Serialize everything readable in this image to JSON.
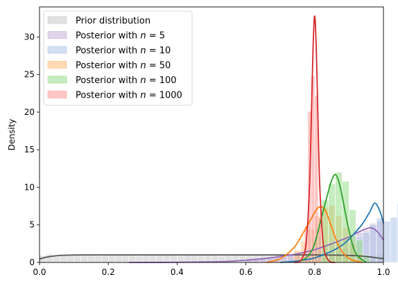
{
  "chart_data": {
    "type": "area",
    "title": "",
    "xlabel": "",
    "ylabel": "Density",
    "xlim": [
      0.0,
      1.0
    ],
    "ylim": [
      0,
      34
    ],
    "xticks": [
      "0.0",
      "0.2",
      "0.4",
      "0.6",
      "0.8",
      "1.0"
    ],
    "yticks": [
      "0",
      "5",
      "10",
      "15",
      "20",
      "25",
      "30"
    ],
    "grid": false,
    "legend_position": "top-left",
    "series": [
      {
        "name": "Prior distribution",
        "label_main": "Prior distribution",
        "label_n": "",
        "color": "#555555",
        "fill": "#c8c8c8",
        "kde_x": [
          0.0,
          0.02,
          0.05,
          0.08,
          0.12,
          0.2,
          0.3,
          0.4,
          0.5,
          0.6,
          0.7,
          0.8,
          0.88,
          0.92,
          0.95,
          0.98,
          1.0
        ],
        "kde_y": [
          0.45,
          0.7,
          0.9,
          0.97,
          1.0,
          1.0,
          1.0,
          1.0,
          1.0,
          1.0,
          1.0,
          1.0,
          0.97,
          0.9,
          0.8,
          0.62,
          0.5
        ],
        "hist_start": 0.0,
        "hist_width": 0.02,
        "hist_values": [
          0.9,
          1.1,
          0.9,
          1.0,
          1.05,
          0.95,
          1.0,
          1.1,
          0.9,
          1.0,
          1.0,
          0.95,
          1.05,
          1.0,
          0.9,
          1.1,
          1.0,
          0.95,
          1.0,
          1.05,
          0.9,
          1.0,
          1.0,
          1.1,
          0.95,
          1.0,
          0.9,
          1.05,
          1.0,
          1.0,
          0.95,
          1.0,
          1.1,
          0.9,
          1.0,
          1.05,
          1.0,
          0.95,
          1.0,
          1.0,
          1.05,
          0.9,
          1.0,
          1.0,
          1.1,
          0.95,
          1.0,
          0.9,
          1.0,
          1.0
        ]
      },
      {
        "name": "Posterior with n = 5",
        "label_main": "Posterior with ",
        "label_n": "5",
        "color": "#9467bd",
        "fill": "#c5b0d5",
        "kde_x": [
          0.26,
          0.4,
          0.5,
          0.55,
          0.6,
          0.65,
          0.7,
          0.75,
          0.8,
          0.85,
          0.9,
          0.93,
          0.96,
          0.98,
          1.0
        ],
        "kde_y": [
          0.0,
          0.02,
          0.08,
          0.15,
          0.3,
          0.5,
          0.8,
          1.15,
          1.7,
          2.5,
          3.4,
          4.1,
          4.6,
          4.2,
          3.0
        ],
        "hist_start": 0.6,
        "hist_width": 0.02,
        "hist_values": [
          0.3,
          0.4,
          0.5,
          0.6,
          0.8,
          0.8,
          1.0,
          1.2,
          1.3,
          1.6,
          1.8,
          2.1,
          2.5,
          2.8,
          3.2,
          3.5,
          4.0,
          4.3,
          5.2,
          5.5
        ]
      },
      {
        "name": "Posterior with n = 10",
        "label_main": "Posterior with ",
        "label_n": "10",
        "color": "#1f77b4",
        "fill": "#aec7e8",
        "kde_x": [
          0.7,
          0.75,
          0.8,
          0.85,
          0.88,
          0.9,
          0.92,
          0.94,
          0.96,
          0.975,
          0.99,
          1.0
        ],
        "kde_y": [
          0.0,
          0.2,
          0.6,
          1.5,
          2.3,
          3.1,
          4.1,
          5.2,
          6.7,
          7.9,
          6.8,
          5.2
        ],
        "hist_start": 0.76,
        "hist_width": 0.02,
        "hist_values": [
          0.2,
          0.3,
          0.5,
          0.8,
          1.1,
          1.5,
          2.0,
          2.6,
          3.4,
          4.0,
          5.0,
          5.9,
          5.5,
          6.0,
          7.8,
          7.5,
          8.0,
          10.8
        ]
      },
      {
        "name": "Posterior with n = 50",
        "label_main": "Posterior with ",
        "label_n": "50",
        "color": "#ff7f0e",
        "fill": "#ffbb78",
        "kde_x": [
          0.66,
          0.7,
          0.74,
          0.77,
          0.79,
          0.81,
          0.83,
          0.85,
          0.87,
          0.89,
          0.91,
          0.94
        ],
        "kde_y": [
          0.0,
          0.5,
          2.0,
          4.2,
          5.8,
          7.3,
          7.0,
          4.6,
          2.2,
          0.9,
          0.3,
          0.0
        ],
        "hist_start": 0.74,
        "hist_width": 0.02,
        "hist_values": [
          1.6,
          2.8,
          4.4,
          6.2,
          7.3,
          7.6,
          6.2,
          4.6,
          2.6,
          1.2
        ]
      },
      {
        "name": "Posterior with n = 100",
        "label_main": "Posterior with ",
        "label_n": "100",
        "color": "#2ca02c",
        "fill": "#98df8a",
        "kde_x": [
          0.75,
          0.78,
          0.8,
          0.82,
          0.84,
          0.85,
          0.86,
          0.87,
          0.88,
          0.9,
          0.92,
          0.95
        ],
        "kde_y": [
          0.0,
          0.8,
          2.5,
          6.0,
          9.5,
          11.0,
          11.7,
          10.8,
          8.8,
          4.2,
          1.2,
          0.0
        ],
        "hist_start": 0.78,
        "hist_width": 0.02,
        "hist_values": [
          1.3,
          3.6,
          8.3,
          10.5,
          12.0,
          10.8,
          7.0,
          3.0,
          1.0
        ]
      },
      {
        "name": "Posterior with n = 1000",
        "label_main": "Posterior with ",
        "label_n": "1000",
        "color": "#d62728",
        "fill": "#ff9896",
        "kde_x": [
          0.74,
          0.76,
          0.775,
          0.785,
          0.79,
          0.795,
          0.8,
          0.805,
          0.81,
          0.815,
          0.825,
          0.84,
          0.86
        ],
        "kde_y": [
          0.0,
          0.3,
          2.5,
          10.0,
          18.5,
          28.0,
          32.8,
          28.0,
          18.5,
          10.0,
          2.5,
          0.3,
          0.0
        ],
        "hist_start": 0.77,
        "hist_width": 0.01,
        "hist_values": [
          4.8,
          20.1,
          24.8,
          22.2,
          6.0
        ]
      }
    ]
  }
}
